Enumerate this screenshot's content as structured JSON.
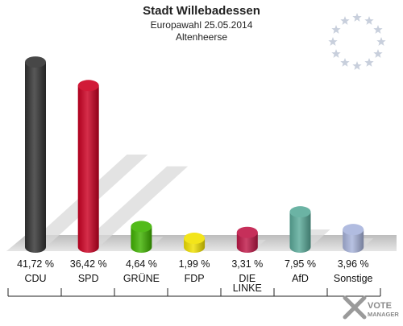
{
  "header": {
    "title": "Stadt Willebadessen",
    "subtitle": "Europawahl 25.05.2014",
    "location": "Altenheerse"
  },
  "logo": {
    "line1": "VOTE",
    "line2": "MANAGER"
  },
  "colors": {
    "eu_star": "#c8cfdc",
    "floor": "#d2d2d2",
    "shadow": "#d9d9d9"
  },
  "chart_data": {
    "type": "bar",
    "title": "Stadt Willebadessen",
    "subtitle": "Europawahl 25.05.2014",
    "ylim": [
      0,
      45
    ],
    "categories": [
      "CDU",
      "SPD",
      "GRÜNE",
      "FDP",
      "DIE LINKE",
      "AfD",
      "Sonstige"
    ],
    "category_lines": [
      [
        "CDU"
      ],
      [
        "SPD"
      ],
      [
        "GRÜNE"
      ],
      [
        "FDP"
      ],
      [
        "DIE",
        "LINKE"
      ],
      [
        "AfD"
      ],
      [
        "Sonstige"
      ]
    ],
    "values": [
      41.72,
      36.42,
      4.64,
      1.99,
      3.31,
      7.95,
      3.96
    ],
    "value_labels": [
      "41,72 %",
      "36,42 %",
      "4,64 %",
      "1,99 %",
      "3,31 %",
      "7,95 %",
      "3,96 %"
    ],
    "colors": [
      "#333333",
      "#cc0022",
      "#3fb300",
      "#f2e200",
      "#c01848",
      "#5aab9a",
      "#a8b4dc"
    ]
  }
}
